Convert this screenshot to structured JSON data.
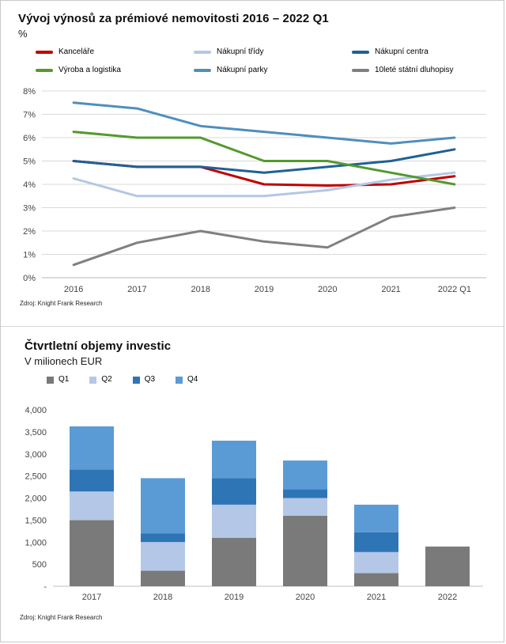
{
  "page": {
    "background": "#ffffff",
    "border_color": "#c9c9c9"
  },
  "chart_data": [
    {
      "type": "line",
      "title": "Vývoj výnosů za prémiové nemovitosti 2016 – 2022 Q1",
      "subtitle": "%",
      "source": "Zdroj: Knight Frank Research",
      "x": [
        "2016",
        "2017",
        "2018",
        "2019",
        "2020",
        "2021",
        "2022 Q1"
      ],
      "ylim": [
        0,
        8
      ],
      "ytick_step": 1,
      "ytick_suffix": "%",
      "grid": true,
      "legend_position": "top",
      "series": [
        {
          "name": "Kanceláře",
          "color": "#c00000",
          "values": [
            5.0,
            4.75,
            4.75,
            4.0,
            3.95,
            4.0,
            4.35
          ]
        },
        {
          "name": "Nákupní třídy",
          "color": "#b4c7e7",
          "values": [
            4.25,
            3.5,
            3.5,
            3.5,
            3.75,
            4.2,
            4.5
          ]
        },
        {
          "name": "Nákupní centra",
          "color": "#1f6195",
          "values": [
            5.0,
            4.75,
            4.75,
            4.5,
            4.75,
            5.0,
            5.5
          ]
        },
        {
          "name": "Výroba a logistika",
          "color": "#54992e",
          "values": [
            6.25,
            6.0,
            6.0,
            5.0,
            5.0,
            4.5,
            4.0
          ]
        },
        {
          "name": "Nákupní parky",
          "color": "#4e8fbe",
          "values": [
            7.5,
            7.25,
            6.5,
            6.25,
            6.0,
            5.75,
            6.0
          ]
        },
        {
          "name": "10leté státní dluhopisy",
          "color": "#808080",
          "values": [
            0.55,
            1.5,
            2.0,
            1.55,
            1.3,
            2.6,
            3.0
          ]
        }
      ]
    },
    {
      "type": "stacked_bar",
      "title": "Čtvrtletní objemy investic",
      "subtitle": "V milionech EUR",
      "source": "Zdroj: Knight Frank Research",
      "categories": [
        "2017",
        "2018",
        "2019",
        "2020",
        "2021",
        "2022"
      ],
      "ylim": [
        0,
        4000
      ],
      "ytick_step": 500,
      "ytick_zero_label": "-",
      "grid": false,
      "legend_position": "top",
      "series": [
        {
          "name": "Q1",
          "color": "#7a7a7a",
          "values": [
            1500,
            350,
            1100,
            1600,
            300,
            900
          ]
        },
        {
          "name": "Q2",
          "color": "#b4c7e7",
          "values": [
            650,
            650,
            750,
            400,
            475,
            0
          ]
        },
        {
          "name": "Q3",
          "color": "#2e75b6",
          "values": [
            500,
            200,
            600,
            200,
            450,
            0
          ]
        },
        {
          "name": "Q4",
          "color": "#5b9bd5",
          "values": [
            975,
            1250,
            850,
            650,
            625,
            0
          ]
        }
      ]
    }
  ]
}
